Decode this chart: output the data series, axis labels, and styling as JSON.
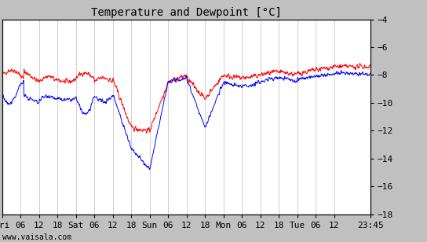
{
  "title": "Temperature and Dewpoint [°C]",
  "ylim": [
    -18,
    -4
  ],
  "yticks": [
    -18,
    -16,
    -14,
    -12,
    -10,
    -8,
    -6,
    -4
  ],
  "background_color": "#c0c0c0",
  "plot_bg_color": "#ffffff",
  "watermark": "www.vaisala.com",
  "temp_color": "#ff0000",
  "dewp_color": "#0000ff",
  "line_width": 0.7,
  "grid_color": "#bbbbbb",
  "title_fontsize": 10,
  "tick_fontsize": 8,
  "x_tick_labels": [
    "Fri",
    "06",
    "12",
    "18",
    "Sat",
    "06",
    "12",
    "18",
    "Sun",
    "06",
    "12",
    "18",
    "Mon",
    "06",
    "12",
    "18",
    "Tue",
    "06",
    "12",
    "23:45"
  ],
  "x_tick_positions": [
    0,
    6,
    12,
    18,
    24,
    30,
    36,
    42,
    48,
    54,
    60,
    66,
    72,
    78,
    84,
    90,
    96,
    102,
    108,
    119.75
  ],
  "x_total_hours": 119.75
}
